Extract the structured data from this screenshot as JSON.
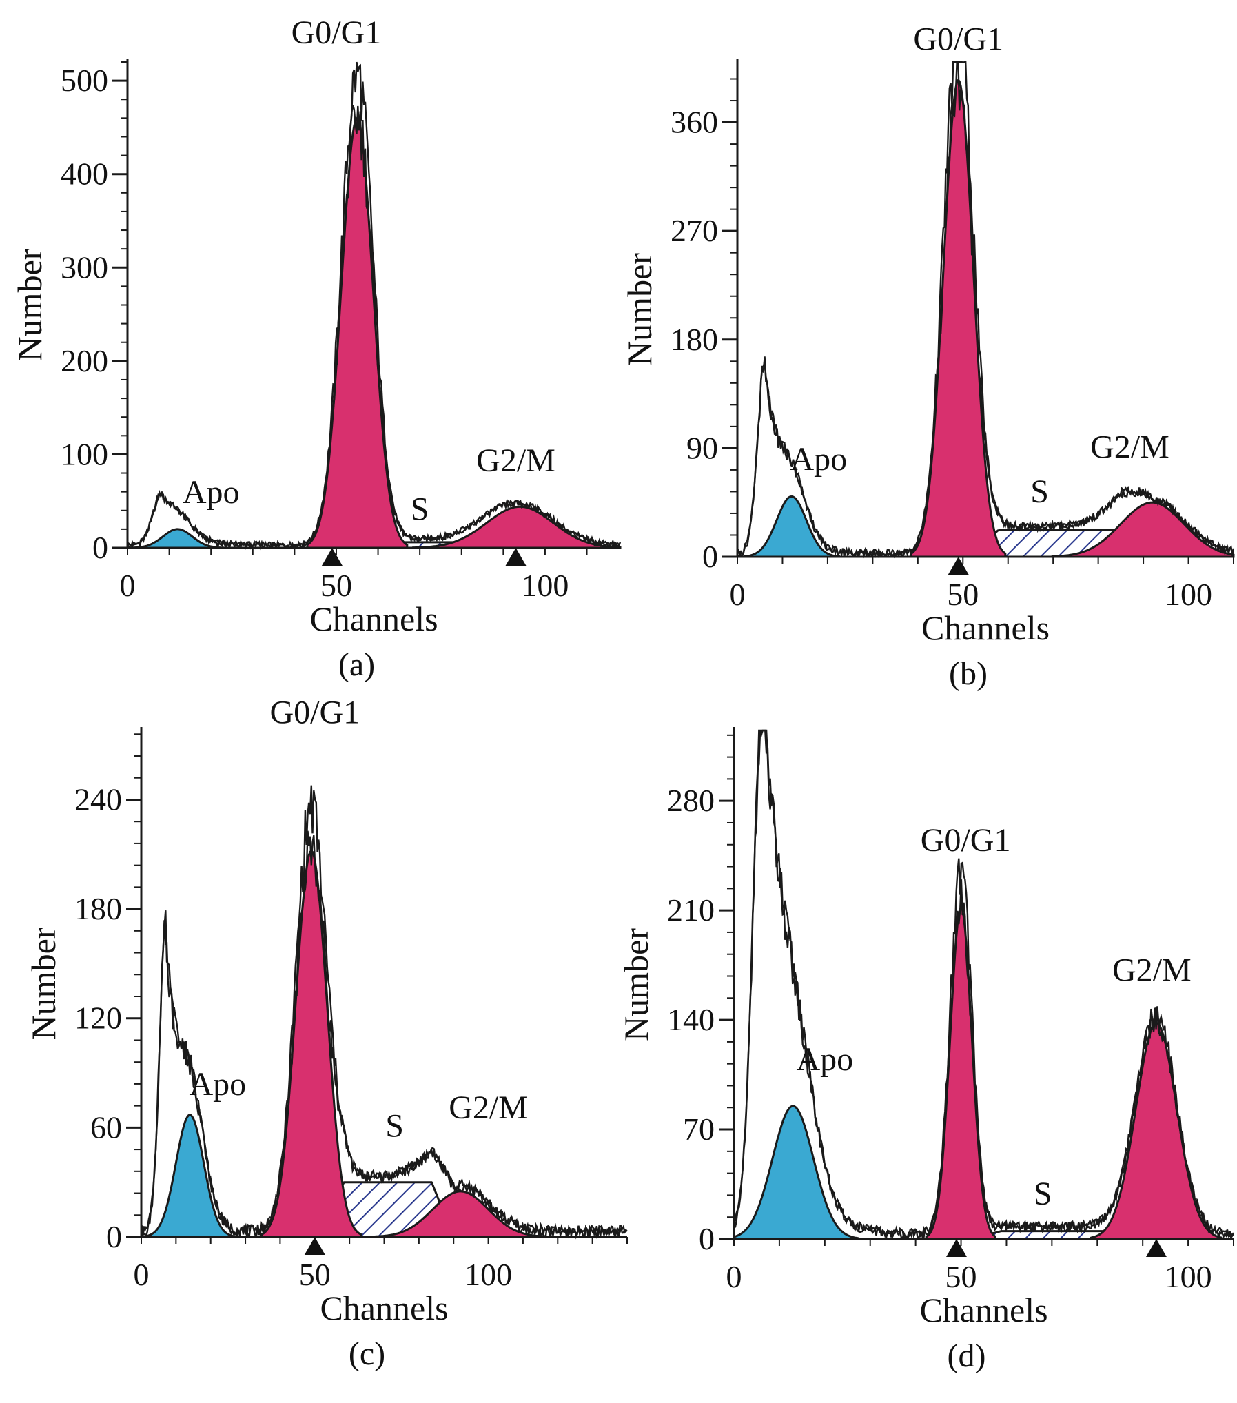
{
  "colors": {
    "g1_fill": "#d8306e",
    "apo_fill": "#3aa9d2",
    "s_hatch": "#2b3a8f",
    "curve": "#1a1a1a",
    "marker": "#111111"
  },
  "chart_data": [
    {
      "type": "area",
      "panel_label": "(a)",
      "xlabel": "Channels",
      "ylabel": "Number",
      "xlim": [
        0,
        118
      ],
      "ylim": [
        0,
        520
      ],
      "xticks": [
        "0",
        "50",
        "100"
      ],
      "yticks": [
        "0",
        "100",
        "200",
        "300",
        "400",
        "500"
      ],
      "ytick_values": [
        0,
        100,
        200,
        300,
        400,
        500
      ],
      "annotations": [
        {
          "text": "G0/G1",
          "x": 50,
          "y": 540
        },
        {
          "text": "Apo",
          "x": 20,
          "y": 48
        },
        {
          "text": "S",
          "x": 70,
          "y": 30
        },
        {
          "text": "G2/M",
          "x": 93,
          "y": 82
        }
      ],
      "markers_x": [
        49,
        93
      ],
      "peaks": [
        {
          "name": "G0/G1",
          "center": 55,
          "height": 460,
          "width": 3.8
        },
        {
          "name": "Apo",
          "center": 12,
          "height": 20,
          "width": 3.5
        },
        {
          "name": "G2/M",
          "center": 94,
          "height": 44,
          "width": 8
        }
      ],
      "s_phase": {
        "start": 55,
        "end": 94,
        "height": 6
      },
      "debris": {
        "center": 8,
        "height": 45,
        "width": 2
      }
    },
    {
      "type": "area",
      "panel_label": "(b)",
      "xlabel": "Channels",
      "ylabel": "Number",
      "xlim": [
        0,
        110
      ],
      "ylim": [
        0,
        410
      ],
      "xticks": [
        "0",
        "50",
        "100"
      ],
      "yticks": [
        "0",
        "90",
        "180",
        "270",
        "360"
      ],
      "ytick_values": [
        0,
        90,
        180,
        270,
        360
      ],
      "annotations": [
        {
          "text": "G0/G1",
          "x": 49,
          "y": 420
        },
        {
          "text": "Apo",
          "x": 18,
          "y": 72
        },
        {
          "text": "S",
          "x": 67,
          "y": 45
        },
        {
          "text": "G2/M",
          "x": 87,
          "y": 82
        }
      ],
      "markers_x": [
        49
      ],
      "peaks": [
        {
          "name": "G0/G1",
          "center": 49,
          "height": 395,
          "width": 3.3
        },
        {
          "name": "Apo",
          "center": 12,
          "height": 50,
          "width": 3.3
        },
        {
          "name": "G2/M",
          "center": 92,
          "height": 45,
          "width": 7
        }
      ],
      "s_phase": {
        "start": 51,
        "end": 92,
        "height": 22
      },
      "debris": {
        "center": 6,
        "height": 145,
        "width": 1.6
      }
    },
    {
      "type": "area",
      "panel_label": "(c)",
      "xlabel": "Channels",
      "ylabel": "Number",
      "xlim": [
        0,
        140
      ],
      "ylim": [
        0,
        278
      ],
      "xticks": [
        "0",
        "50",
        "100"
      ],
      "yticks": [
        "0",
        "60",
        "120",
        "180",
        "240"
      ],
      "ytick_values": [
        0,
        60,
        120,
        180,
        240
      ],
      "annotations": [
        {
          "text": "G0/G1",
          "x": 50,
          "y": 282
        },
        {
          "text": "Apo",
          "x": 22,
          "y": 78
        },
        {
          "text": "S",
          "x": 73,
          "y": 55
        },
        {
          "text": "G2/M",
          "x": 100,
          "y": 65
        }
      ],
      "markers_x": [
        50
      ],
      "peaks": [
        {
          "name": "G0/G1",
          "center": 49,
          "height": 212,
          "width": 4.5
        },
        {
          "name": "Apo",
          "center": 14,
          "height": 67,
          "width": 4
        },
        {
          "name": "G2/M",
          "center": 92,
          "height": 25,
          "width": 8
        }
      ],
      "s_phase": {
        "start": 52,
        "end": 90,
        "height": 30
      },
      "debris": {
        "center": 7,
        "height": 150,
        "width": 1.8
      }
    },
    {
      "type": "area",
      "panel_label": "(d)",
      "xlabel": "Channels",
      "ylabel": "Number",
      "xlim": [
        0,
        110
      ],
      "ylim": [
        0,
        325
      ],
      "xticks": [
        "0",
        "50",
        "100"
      ],
      "yticks": [
        "0",
        "70",
        "140",
        "210",
        "280"
      ],
      "ytick_values": [
        0,
        70,
        140,
        210,
        280
      ],
      "annotations": [
        {
          "text": "G0/G1",
          "x": 51,
          "y": 248
        },
        {
          "text": "Apo",
          "x": 20,
          "y": 108
        },
        {
          "text": "S",
          "x": 68,
          "y": 22
        },
        {
          "text": "G2/M",
          "x": 92,
          "y": 165
        }
      ],
      "markers_x": [
        49,
        93
      ],
      "peaks": [
        {
          "name": "G0/G1",
          "center": 50,
          "height": 212,
          "width": 2.4
        },
        {
          "name": "Apo",
          "center": 13,
          "height": 85,
          "width": 4.5
        },
        {
          "name": "G2/M",
          "center": 93,
          "height": 138,
          "width": 4.5
        }
      ],
      "s_phase": {
        "start": 52,
        "end": 93,
        "height": 5
      },
      "debris": {
        "center": 6.5,
        "height": 325,
        "width": 2.2
      }
    }
  ]
}
